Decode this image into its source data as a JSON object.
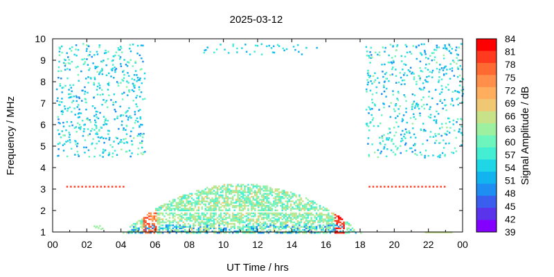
{
  "chart_data": {
    "type": "heatmap",
    "title": "2025-03-12",
    "xlabel": "UT Time / hrs",
    "ylabel": "Frequency / MHz",
    "xlim": [
      0,
      24
    ],
    "ylim": [
      1,
      10
    ],
    "x_tick_labels": [
      "00",
      "02",
      "04",
      "06",
      "08",
      "10",
      "12",
      "14",
      "16",
      "18",
      "20",
      "22",
      "00"
    ],
    "y_tick_labels": [
      "1",
      "2",
      "3",
      "4",
      "5",
      "6",
      "7",
      "8",
      "9",
      "10"
    ],
    "colorbar": {
      "label": "Signal Amplitude / dB",
      "range": [
        39,
        84
      ],
      "tick_labels": [
        "84",
        "81",
        "78",
        "75",
        "72",
        "69",
        "66",
        "63",
        "60",
        "57",
        "54",
        "51",
        "48",
        "45",
        "42",
        "39"
      ],
      "colors": [
        "#ff0000",
        "#ff3a1e",
        "#ff6a33",
        "#ff8f4a",
        "#ffae5e",
        "#f0c874",
        "#c8e28a",
        "#9cf0a0",
        "#6ef5bd",
        "#44eed3",
        "#1fd6e6",
        "#12b4ef",
        "#1e8ef3",
        "#3a5fee",
        "#5a34ea",
        "#8300ff"
      ]
    },
    "regions": [
      {
        "t": [
          4.0,
          18.0
        ],
        "f": [
          1.0,
          3.3
        ],
        "level_db": [
          50,
          70
        ],
        "description_shape": "daytime dome"
      },
      {
        "t": [
          5.2,
          6.0
        ],
        "f": [
          1.0,
          2.0
        ],
        "level_db": [
          72,
          82
        ]
      },
      {
        "t": [
          16.5,
          17.0
        ],
        "f": [
          1.0,
          2.1
        ],
        "level_db": [
          78,
          84
        ]
      },
      {
        "t": [
          0.0,
          5.5
        ],
        "f": [
          4.5,
          9.8
        ],
        "level_db": [
          50,
          60
        ]
      },
      {
        "t": [
          18.0,
          24.0
        ],
        "f": [
          4.5,
          9.8
        ],
        "level_db": [
          50,
          60
        ]
      },
      {
        "t": [
          0.8,
          4.2
        ],
        "f": [
          3.1,
          3.15
        ],
        "level_db": [
          78,
          80
        ]
      },
      {
        "t": [
          18.5,
          23.0
        ],
        "f": [
          3.1,
          3.15
        ],
        "level_db": [
          78,
          80
        ]
      }
    ]
  }
}
